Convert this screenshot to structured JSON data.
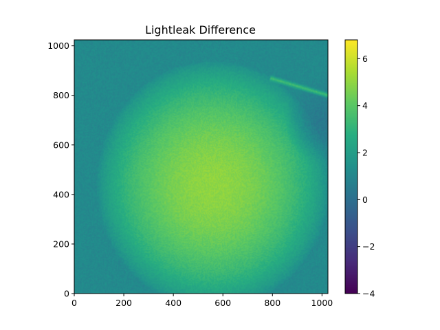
{
  "chart_data": {
    "type": "heatmap",
    "title": "Lightleak Difference",
    "xlabel": "",
    "ylabel": "",
    "colormap": "viridis",
    "xlim": [
      0,
      1024
    ],
    "ylim": [
      0,
      1024
    ],
    "x_ticks": [
      0,
      200,
      400,
      600,
      800,
      1000
    ],
    "y_ticks": [
      0,
      200,
      400,
      600,
      800,
      1000
    ],
    "colorbar": {
      "min": -4,
      "max": 6.8,
      "ticks": [
        -4,
        -2,
        0,
        2,
        4,
        6
      ],
      "tick_labels": [
        "−4",
        "−2",
        "0",
        "2",
        "4",
        "6"
      ]
    },
    "grid": false,
    "field": {
      "background_value": 1.1,
      "blob_center": [
        560,
        440
      ],
      "blob_radii": [
        470,
        500
      ],
      "blob_peak_value": 5.0,
      "streak_value": 3.6,
      "streak_from": [
        790,
        870
      ],
      "streak_to": [
        1024,
        800
      ],
      "dark_corner_value": 0.3
    }
  }
}
